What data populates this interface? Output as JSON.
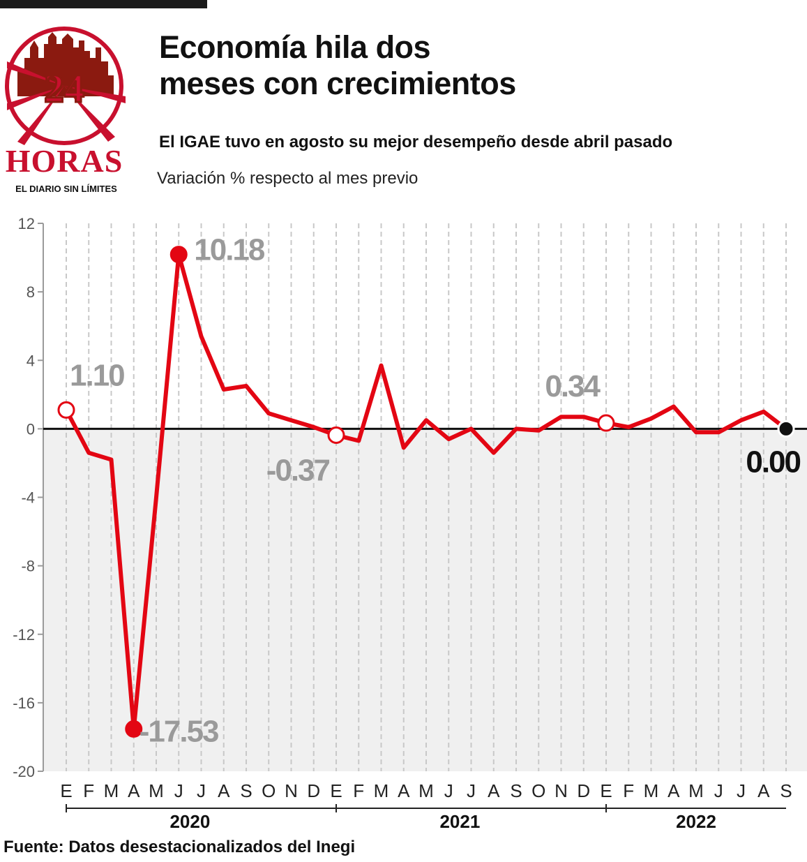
{
  "header": {
    "title_line1": "Economía hila dos",
    "title_line2": "meses con crecimientos",
    "subtitle": "El IGAE tuvo en agosto su mejor desempeño desde abril pasado",
    "unit_label": "Variación % respecto al mes previo"
  },
  "logo": {
    "number": "24",
    "name": "HORAS",
    "tagline": "EL DIARIO SIN LÍMITES",
    "colors": {
      "red": "#c8102e",
      "dark_red": "#8b1a10",
      "gold": "#c9a05a"
    }
  },
  "source": "Fuente: Datos desestacionalizados del Inegi",
  "colors": {
    "line": "#e30613",
    "zero_line": "#111111",
    "grid": "#c8c8c8",
    "negative_band": "#f0f0f0",
    "label_gray": "#9a9a9a",
    "label_black": "#111111"
  },
  "chart_data": {
    "type": "line",
    "ylim": [
      -20,
      12
    ],
    "yticks": [
      12,
      8,
      4,
      0,
      -4,
      -8,
      -12,
      -16,
      -20
    ],
    "grid": "vertical",
    "month_labels": [
      "E",
      "F",
      "M",
      "A",
      "M",
      "J",
      "J",
      "A",
      "S",
      "O",
      "N",
      "D",
      "E",
      "F",
      "M",
      "A",
      "M",
      "J",
      "J",
      "A",
      "S",
      "O",
      "N",
      "D",
      "E",
      "F",
      "M",
      "A",
      "M",
      "J",
      "J",
      "A",
      "S"
    ],
    "years": [
      {
        "label": "2020",
        "start_index": 0,
        "end_index": 11
      },
      {
        "label": "2021",
        "start_index": 12,
        "end_index": 23
      },
      {
        "label": "2022",
        "start_index": 24,
        "end_index": 32
      }
    ],
    "series": [
      {
        "values": [
          1.1,
          -1.4,
          -1.8,
          -17.53,
          -4.0,
          10.18,
          5.4,
          2.3,
          2.5,
          0.9,
          0.5,
          0.1,
          -0.37,
          -0.7,
          3.7,
          -1.1,
          0.5,
          -0.6,
          0.0,
          -1.4,
          0.0,
          -0.1,
          0.7,
          0.7,
          0.34,
          0.1,
          0.6,
          1.3,
          -0.2,
          -0.2,
          0.5,
          1.0,
          0.0
        ]
      }
    ],
    "annotations": [
      {
        "index": 0,
        "text": "1.10",
        "marker": "hollow",
        "color": "gray"
      },
      {
        "index": 3,
        "text": "-17.53",
        "marker": "filled",
        "color": "gray"
      },
      {
        "index": 5,
        "text": "10.18",
        "marker": "filled",
        "color": "gray"
      },
      {
        "index": 12,
        "text": "-0.37",
        "marker": "hollow",
        "color": "gray"
      },
      {
        "index": 24,
        "text": "0.34",
        "marker": "hollow",
        "color": "gray"
      },
      {
        "index": 32,
        "text": "0.00",
        "marker": "black",
        "color": "black"
      }
    ]
  }
}
